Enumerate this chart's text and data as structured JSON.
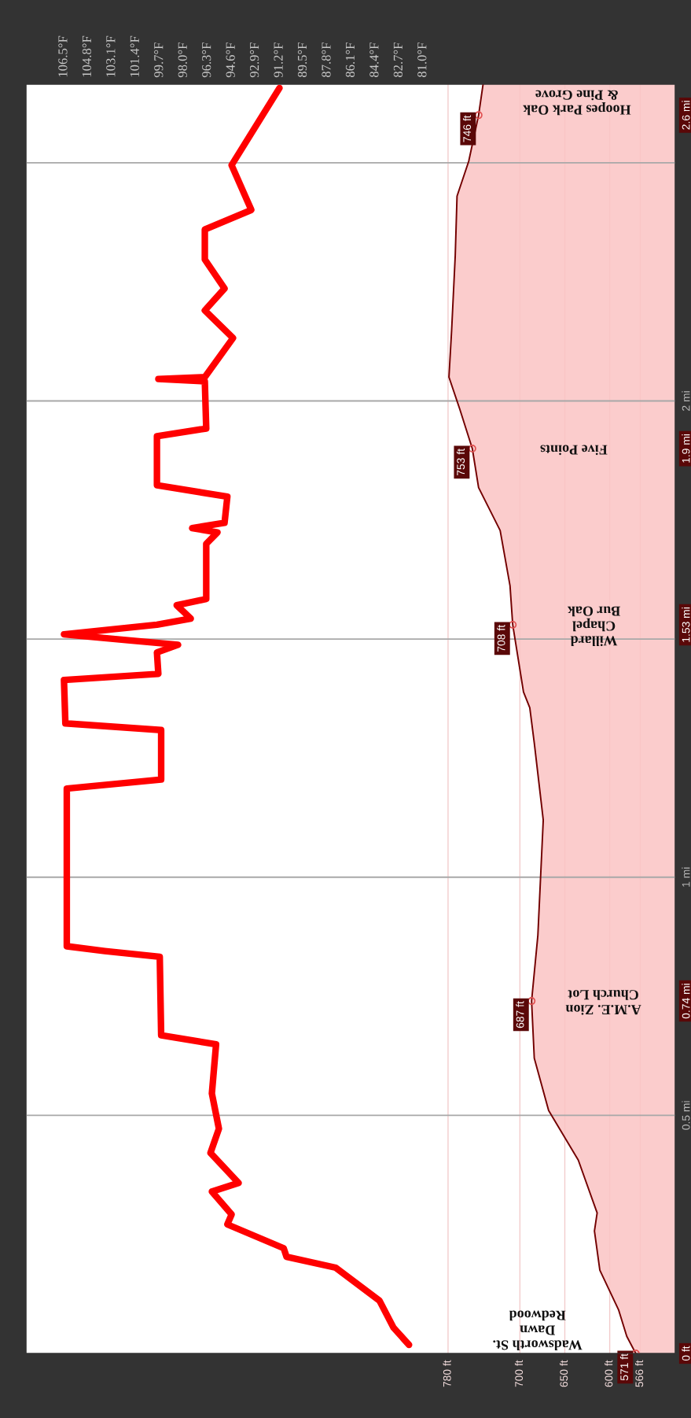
{
  "chart_data": {
    "type": "line",
    "orientation": "horizontal",
    "xlim": [
      1250,
      527
    ],
    "xticks": [
      {
        "value": 566,
        "label": "566 ft"
      },
      {
        "value": 600,
        "label": "600 ft"
      },
      {
        "value": 650,
        "label": "650 ft"
      },
      {
        "value": 700,
        "label": "700 ft"
      },
      {
        "value": 780,
        "label": "780 ft"
      }
    ],
    "ylim": [
      0,
      2.665
    ],
    "yticks": [
      {
        "value": 0,
        "label": "0 ft"
      },
      {
        "value": 0.5,
        "label": "0.5 mi"
      },
      {
        "value": 0.74,
        "label": "0.74 mi"
      },
      {
        "value": 1,
        "label": "1 mi"
      },
      {
        "value": 1.53,
        "label": "1.53 mi"
      },
      {
        "value": 1.9,
        "label": "1.9 mi"
      },
      {
        "value": 2,
        "label": "2 mi"
      },
      {
        "value": 2.6,
        "label": "2.6 mi"
      }
    ],
    "x2lim": [
      109.2,
      63.1
    ],
    "x2ticks": [
      {
        "value": 106.5,
        "label": "106.5°F"
      },
      {
        "value": 104.8,
        "label": "104.8°F"
      },
      {
        "value": 103.1,
        "label": "103.1°F"
      },
      {
        "value": 101.4,
        "label": "101.4°F"
      },
      {
        "value": 99.7,
        "label": "99.7°F"
      },
      {
        "value": 98.0,
        "label": "98.0°F"
      },
      {
        "value": 96.3,
        "label": "96.3°F"
      },
      {
        "value": 94.6,
        "label": "94.6°F"
      },
      {
        "value": 92.9,
        "label": "92.9°F"
      },
      {
        "value": 91.2,
        "label": "91.2°F"
      },
      {
        "value": 89.5,
        "label": "89.5°F"
      },
      {
        "value": 87.8,
        "label": "87.8°F"
      },
      {
        "value": 86.1,
        "label": "86.1°F"
      },
      {
        "value": 84.4,
        "label": "84.4°F"
      },
      {
        "value": 82.7,
        "label": "82.7°F"
      },
      {
        "value": 81.0,
        "label": "81.0°F"
      }
    ],
    "grid": "x",
    "ref_lines": [
      {
        "axis": "y",
        "value": 0.5,
        "color": "#a8a8a8"
      },
      {
        "axis": "y",
        "value": 1,
        "color": "#a8a8a8"
      },
      {
        "axis": "y",
        "value": 1.5,
        "color": "#a8a8a8"
      },
      {
        "axis": "y",
        "value": 2,
        "color": "#a8a8a8"
      },
      {
        "axis": "y",
        "value": 2.5,
        "color": "#a8a8a8"
      }
    ],
    "series": [
      {
        "type": "area",
        "color": "#fac3c3",
        "x": [
          0,
          0.036,
          0.091,
          0.175,
          0.257,
          0.295,
          0.406,
          0.51,
          0.62,
          0.74,
          0.878,
          1.12,
          1.282,
          1.356,
          1.389,
          1.53,
          1.612,
          1.728,
          1.818,
          1.9,
          1.983,
          2.05,
          2.149,
          2.305,
          2.43,
          2.503,
          2.6,
          2.665
        ],
        "values": [
          571,
          581,
          590,
          611,
          617,
          614,
          635,
          668,
          684,
          687,
          680,
          674,
          684,
          689,
          696,
          708,
          711,
          722,
          746,
          753,
          767,
          779,
          776,
          772,
          770,
          757,
          746,
          741
        ],
        "value_labels": [
          "571 ft",
          null,
          null,
          null,
          null,
          null,
          null,
          null,
          null,
          "687 ft",
          null,
          null,
          null,
          null,
          null,
          "708 ft",
          null,
          null,
          null,
          "753 ft",
          null,
          null,
          null,
          null,
          null,
          null,
          "746 ft",
          null
        ]
      },
      {
        "axis": "x2",
        "color": "#ff0000",
        "x": [
          0.018,
          0.054,
          0.111,
          0.18,
          0.203,
          0.221,
          0.271,
          0.292,
          0.34,
          0.358,
          0.421,
          0.472,
          0.546,
          0.649,
          0.668,
          0.833,
          0.845,
          0.855,
          1.186,
          1.205,
          1.309,
          1.323,
          1.414,
          1.427,
          1.472,
          1.488,
          1.497,
          1.51,
          1.53,
          1.543,
          1.571,
          1.584,
          1.7,
          1.724,
          1.733,
          1.744,
          1.799,
          1.823,
          1.926,
          1.942,
          2.041,
          2.046,
          2.05,
          2.132,
          2.19,
          2.236,
          2.297,
          2.36,
          2.401,
          2.495,
          2.657
        ],
        "values": [
          82.0,
          83.1,
          84.1,
          87.2,
          90.7,
          90.9,
          94.9,
          94.6,
          96.0,
          94.1,
          96.1,
          95.5,
          96.0,
          95.7,
          99.6,
          99.7,
          103.6,
          106.3,
          106.3,
          99.6,
          99.6,
          106.4,
          106.5,
          99.8,
          99.9,
          98.4,
          101.8,
          106.5,
          99.9,
          97.5,
          98.5,
          96.4,
          96.4,
          95.6,
          97.4,
          95.1,
          94.9,
          99.9,
          99.9,
          96.4,
          96.5,
          99.8,
          96.5,
          94.5,
          96.5,
          95.1,
          96.5,
          96.5,
          93.2,
          94.6,
          91.2
        ]
      }
    ],
    "annotations": [
      "Wadsworth St.\nDawn\nRedwood",
      "A.M.E. Zion\nChurch Lot",
      "Willard\nChapel\nBur Oak",
      "Five Points",
      "Hoopes Park Oak\n& Pine Grove"
    ]
  }
}
